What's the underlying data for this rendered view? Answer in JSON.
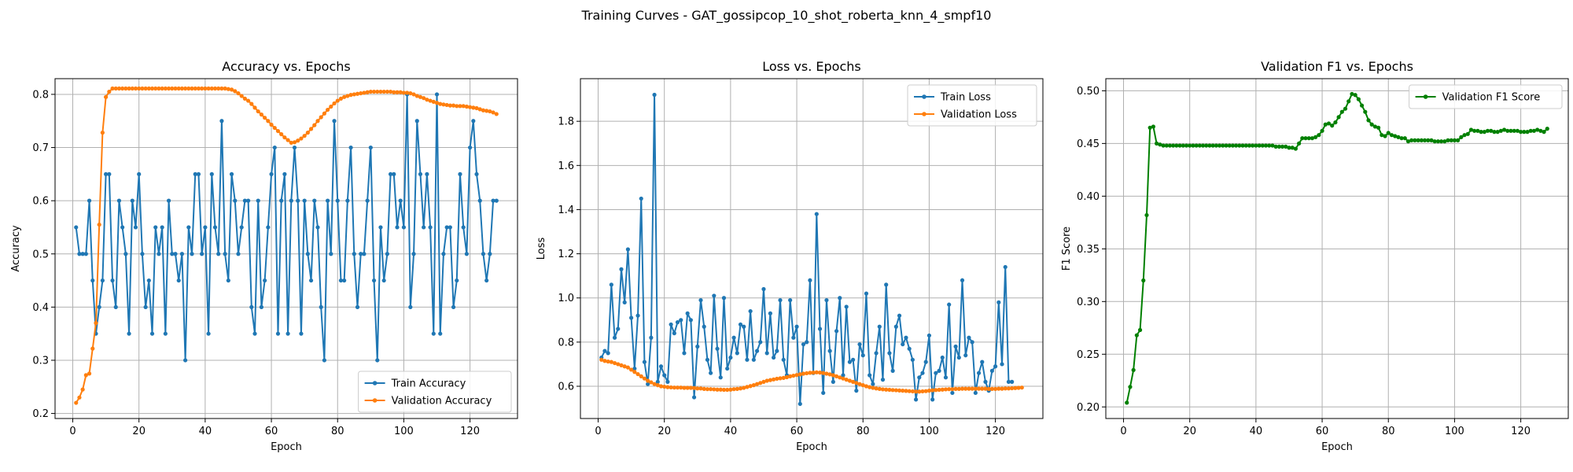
{
  "figure": {
    "suptitle": "Training Curves - GAT_gossipcop_10_shot_roberta_knn_4_smpf10"
  },
  "colors": {
    "blue": "#1f77b4",
    "orange": "#ff7f0e",
    "green": "#008000",
    "grid": "#b0b0b0"
  },
  "chart_data": [
    {
      "type": "line",
      "title": "Accuracy vs. Epochs",
      "xlabel": "Epoch",
      "ylabel": "Accuracy",
      "xlim": [
        -5.35,
        134.35
      ],
      "ylim": [
        0.1905,
        0.8295
      ],
      "xticks": [
        0,
        20,
        40,
        60,
        80,
        100,
        120
      ],
      "yticks": [
        0.2,
        0.3,
        0.4,
        0.5,
        0.6,
        0.7,
        0.8
      ],
      "ytick_labels": [
        "0.2",
        "0.3",
        "0.4",
        "0.5",
        "0.6",
        "0.7",
        "0.8"
      ],
      "grid": true,
      "legend_position": "lower-right",
      "series": [
        {
          "name": "Train Accuracy",
          "color": "#1f77b4",
          "y": [
            0.55,
            0.5,
            0.5,
            0.5,
            0.6,
            0.45,
            0.35,
            0.4,
            0.45,
            0.65,
            0.65,
            0.45,
            0.4,
            0.6,
            0.55,
            0.5,
            0.35,
            0.6,
            0.55,
            0.65,
            0.5,
            0.4,
            0.45,
            0.35,
            0.55,
            0.5,
            0.55,
            0.35,
            0.6,
            0.5,
            0.5,
            0.45,
            0.5,
            0.3,
            0.55,
            0.5,
            0.65,
            0.65,
            0.5,
            0.55,
            0.35,
            0.65,
            0.55,
            0.5,
            0.75,
            0.5,
            0.45,
            0.65,
            0.6,
            0.5,
            0.55,
            0.6,
            0.6,
            0.4,
            0.35,
            0.6,
            0.4,
            0.45,
            0.55,
            0.65,
            0.7,
            0.35,
            0.6,
            0.65,
            0.35,
            0.6,
            0.7,
            0.6,
            0.35,
            0.6,
            0.5,
            0.45,
            0.6,
            0.55,
            0.4,
            0.3,
            0.6,
            0.5,
            0.75,
            0.6,
            0.45,
            0.45,
            0.6,
            0.7,
            0.5,
            0.4,
            0.5,
            0.5,
            0.6,
            0.7,
            0.45,
            0.3,
            0.55,
            0.45,
            0.5,
            0.65,
            0.65,
            0.55,
            0.6,
            0.55,
            0.8,
            0.4,
            0.5,
            0.75,
            0.65,
            0.55,
            0.65,
            0.55,
            0.35,
            0.8,
            0.35,
            0.5,
            0.55,
            0.55,
            0.4,
            0.45,
            0.65,
            0.55,
            0.5,
            0.7,
            0.75,
            0.65,
            0.6,
            0.5,
            0.45,
            0.5,
            0.6,
            0.6
          ]
        },
        {
          "name": "Validation Accuracy",
          "color": "#ff7f0e",
          "y": [
            0.22,
            0.23,
            0.245,
            0.272,
            0.275,
            0.322,
            0.37,
            0.555,
            0.728,
            0.795,
            0.805,
            0.811,
            0.811,
            0.811,
            0.811,
            0.811,
            0.811,
            0.811,
            0.811,
            0.811,
            0.811,
            0.811,
            0.811,
            0.811,
            0.811,
            0.811,
            0.811,
            0.811,
            0.811,
            0.811,
            0.811,
            0.811,
            0.811,
            0.811,
            0.811,
            0.811,
            0.811,
            0.811,
            0.811,
            0.811,
            0.811,
            0.811,
            0.811,
            0.811,
            0.811,
            0.811,
            0.81,
            0.809,
            0.806,
            0.802,
            0.797,
            0.792,
            0.788,
            0.782,
            0.775,
            0.768,
            0.762,
            0.756,
            0.75,
            0.743,
            0.737,
            0.731,
            0.725,
            0.719,
            0.714,
            0.709,
            0.71,
            0.713,
            0.717,
            0.722,
            0.728,
            0.735,
            0.742,
            0.75,
            0.757,
            0.764,
            0.771,
            0.777,
            0.783,
            0.788,
            0.792,
            0.795,
            0.797,
            0.799,
            0.8,
            0.801,
            0.802,
            0.803,
            0.804,
            0.805,
            0.805,
            0.805,
            0.805,
            0.805,
            0.805,
            0.805,
            0.804,
            0.804,
            0.804,
            0.803,
            0.803,
            0.802,
            0.8,
            0.797,
            0.795,
            0.793,
            0.79,
            0.788,
            0.786,
            0.784,
            0.782,
            0.781,
            0.78,
            0.779,
            0.779,
            0.778,
            0.778,
            0.778,
            0.777,
            0.776,
            0.775,
            0.774,
            0.772,
            0.77,
            0.769,
            0.768,
            0.766,
            0.763
          ]
        }
      ]
    },
    {
      "type": "line",
      "title": "Loss vs. Epochs",
      "xlabel": "Epoch",
      "ylabel": "Loss",
      "xlim": [
        -5.35,
        134.35
      ],
      "ylim": [
        0.454,
        1.993
      ],
      "xticks": [
        0,
        20,
        40,
        60,
        80,
        100,
        120
      ],
      "yticks": [
        0.6,
        0.8,
        1.0,
        1.2,
        1.4,
        1.6,
        1.8
      ],
      "ytick_labels": [
        "0.6",
        "0.8",
        "1.0",
        "1.2",
        "1.4",
        "1.6",
        "1.8"
      ],
      "grid": true,
      "legend_position": "upper-right",
      "series": [
        {
          "name": "Train Loss",
          "color": "#1f77b4",
          "y": [
            0.73,
            0.76,
            0.75,
            1.06,
            0.82,
            0.86,
            1.13,
            0.98,
            1.22,
            0.91,
            0.68,
            0.92,
            1.45,
            0.71,
            0.61,
            0.82,
            1.92,
            0.62,
            0.69,
            0.65,
            0.62,
            0.88,
            0.84,
            0.89,
            0.9,
            0.75,
            0.93,
            0.9,
            0.55,
            0.78,
            0.99,
            0.87,
            0.72,
            0.66,
            1.01,
            0.77,
            0.64,
            1.0,
            0.68,
            0.73,
            0.82,
            0.75,
            0.88,
            0.87,
            0.72,
            0.94,
            0.72,
            0.76,
            0.8,
            1.04,
            0.75,
            0.93,
            0.73,
            0.76,
            0.99,
            0.72,
            0.65,
            0.99,
            0.82,
            0.87,
            0.52,
            0.79,
            0.8,
            1.08,
            0.66,
            1.38,
            0.86,
            0.57,
            0.99,
            0.76,
            0.62,
            0.85,
            1.0,
            0.65,
            0.96,
            0.71,
            0.72,
            0.58,
            0.79,
            0.74,
            1.02,
            0.65,
            0.61,
            0.75,
            0.87,
            0.63,
            1.06,
            0.75,
            0.67,
            0.87,
            0.92,
            0.79,
            0.82,
            0.77,
            0.72,
            0.54,
            0.64,
            0.66,
            0.71,
            0.83,
            0.54,
            0.66,
            0.67,
            0.73,
            0.64,
            0.97,
            0.57,
            0.78,
            0.73,
            1.08,
            0.74,
            0.82,
            0.8,
            0.57,
            0.66,
            0.71,
            0.62,
            0.58,
            0.67,
            0.69,
            0.98,
            0.7,
            1.14,
            0.62,
            0.62
          ]
        },
        {
          "name": "Validation Loss",
          "color": "#ff7f0e",
          "y": [
            0.72,
            0.715,
            0.712,
            0.71,
            0.705,
            0.7,
            0.695,
            0.69,
            0.685,
            0.675,
            0.665,
            0.655,
            0.645,
            0.635,
            0.625,
            0.618,
            0.61,
            0.605,
            0.6,
            0.598,
            0.596,
            0.595,
            0.594,
            0.594,
            0.594,
            0.593,
            0.593,
            0.593,
            0.592,
            0.59,
            0.59,
            0.588,
            0.587,
            0.587,
            0.586,
            0.585,
            0.585,
            0.584,
            0.584,
            0.585,
            0.587,
            0.588,
            0.59,
            0.593,
            0.597,
            0.601,
            0.605,
            0.61,
            0.615,
            0.62,
            0.625,
            0.628,
            0.631,
            0.634,
            0.636,
            0.638,
            0.641,
            0.645,
            0.648,
            0.651,
            0.654,
            0.657,
            0.659,
            0.661,
            0.662,
            0.663,
            0.662,
            0.66,
            0.657,
            0.654,
            0.65,
            0.645,
            0.64,
            0.635,
            0.63,
            0.625,
            0.62,
            0.615,
            0.61,
            0.605,
            0.6,
            0.596,
            0.593,
            0.59,
            0.588,
            0.586,
            0.585,
            0.584,
            0.583,
            0.582,
            0.581,
            0.58,
            0.579,
            0.578,
            0.577,
            0.576,
            0.576,
            0.577,
            0.578,
            0.58,
            0.582,
            0.583,
            0.584,
            0.585,
            0.586,
            0.587,
            0.587,
            0.588,
            0.588,
            0.589,
            0.589,
            0.589,
            0.589,
            0.589,
            0.589,
            0.589,
            0.589,
            0.588,
            0.588,
            0.588,
            0.589,
            0.589,
            0.59,
            0.59,
            0.591,
            0.592,
            0.593,
            0.594
          ]
        }
      ]
    },
    {
      "type": "line",
      "title": "Validation F1 vs. Epochs",
      "xlabel": "Epoch",
      "ylabel": "F1 Score",
      "xlim": [
        -5.35,
        134.35
      ],
      "ylim": [
        0.189,
        0.5115
      ],
      "xticks": [
        0,
        20,
        40,
        60,
        80,
        100,
        120
      ],
      "yticks": [
        0.2,
        0.25,
        0.3,
        0.35,
        0.4,
        0.45,
        0.5
      ],
      "ytick_labels": [
        "0.20",
        "0.25",
        "0.30",
        "0.35",
        "0.40",
        "0.45",
        "0.50"
      ],
      "grid": true,
      "legend_position": "upper-right",
      "series": [
        {
          "name": "Validation F1 Score",
          "color": "#008000",
          "y": [
            0.204,
            0.219,
            0.235,
            0.268,
            0.273,
            0.32,
            0.382,
            0.465,
            0.466,
            0.45,
            0.449,
            0.448,
            0.448,
            0.448,
            0.448,
            0.448,
            0.448,
            0.448,
            0.448,
            0.448,
            0.448,
            0.448,
            0.448,
            0.448,
            0.448,
            0.448,
            0.448,
            0.448,
            0.448,
            0.448,
            0.448,
            0.448,
            0.448,
            0.448,
            0.448,
            0.448,
            0.448,
            0.448,
            0.448,
            0.448,
            0.448,
            0.448,
            0.448,
            0.448,
            0.448,
            0.447,
            0.447,
            0.447,
            0.447,
            0.446,
            0.446,
            0.445,
            0.45,
            0.455,
            0.455,
            0.455,
            0.455,
            0.456,
            0.458,
            0.462,
            0.468,
            0.469,
            0.467,
            0.47,
            0.475,
            0.48,
            0.483,
            0.49,
            0.497,
            0.496,
            0.492,
            0.486,
            0.48,
            0.472,
            0.468,
            0.466,
            0.465,
            0.458,
            0.457,
            0.46,
            0.458,
            0.457,
            0.456,
            0.455,
            0.455,
            0.452,
            0.453,
            0.453,
            0.453,
            0.453,
            0.453,
            0.453,
            0.453,
            0.452,
            0.452,
            0.452,
            0.452,
            0.453,
            0.453,
            0.453,
            0.453,
            0.456,
            0.458,
            0.459,
            0.463,
            0.462,
            0.462,
            0.461,
            0.461,
            0.462,
            0.462,
            0.461,
            0.461,
            0.462,
            0.463,
            0.462,
            0.462,
            0.462,
            0.462,
            0.461,
            0.461,
            0.461,
            0.462,
            0.462,
            0.463,
            0.462,
            0.461,
            0.464
          ]
        }
      ]
    }
  ]
}
